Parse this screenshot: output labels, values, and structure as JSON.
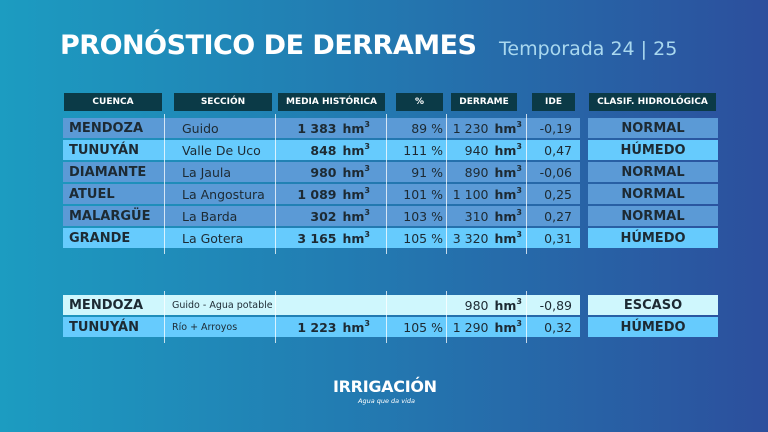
{
  "header": {
    "title": "PRONÓSTICO DE DERRAMES",
    "subtitle": "Temporada 24 | 25"
  },
  "columns": {
    "cuenca": "CUENCA",
    "seccion": "SECCIÓN",
    "media": "MEDIA HISTÓRICA",
    "pct": "%",
    "derrame": "DERRAME",
    "ide": "IDE",
    "clasif": "CLASIF. HIDROLÓGICA"
  },
  "colors": {
    "normal": "#5b9ad6",
    "humedo": "#66cbfd",
    "escaso": "#cff7fd",
    "header": "#0b3a47"
  },
  "main_rows": [
    {
      "cuenca": "MENDOZA",
      "seccion": "Guido",
      "media": "1 383",
      "pct": "89 %",
      "derrame": "1 230",
      "ide": "-0,19",
      "clasif": "NORMAL",
      "type": "normal"
    },
    {
      "cuenca": "TUNUYÁN",
      "seccion": "Valle De Uco",
      "media": "848",
      "pct": "111 %",
      "derrame": "940",
      "ide": "0,47",
      "clasif": "HÚMEDO",
      "type": "humedo"
    },
    {
      "cuenca": "DIAMANTE",
      "seccion": "La Jaula",
      "media": "980",
      "pct": "91 %",
      "derrame": "890",
      "ide": "-0,06",
      "clasif": "NORMAL",
      "type": "normal"
    },
    {
      "cuenca": "ATUEL",
      "seccion": "La Angostura",
      "media": "1 089",
      "pct": "101 %",
      "derrame": "1 100",
      "ide": "0,25",
      "clasif": "NORMAL",
      "type": "normal"
    },
    {
      "cuenca": "MALARGÜE",
      "seccion": "La Barda",
      "media": "302",
      "pct": "103 %",
      "derrame": "310",
      "ide": "0,27",
      "clasif": "NORMAL",
      "type": "normal"
    },
    {
      "cuenca": "GRANDE",
      "seccion": "La Gotera",
      "media": "3 165",
      "pct": "105 %",
      "derrame": "3 320",
      "ide": "0,31",
      "clasif": "HÚMEDO",
      "type": "humedo"
    }
  ],
  "extra_rows": [
    {
      "cuenca": "MENDOZA",
      "seccion": "Guido - Agua potable",
      "media": "",
      "pct": "",
      "derrame": "980",
      "ide": "-0,89",
      "clasif": "ESCASO",
      "type": "escaso"
    },
    {
      "cuenca": "TUNUYÁN",
      "seccion": "Río + Arroyos",
      "media": "1 223",
      "pct": "105 %",
      "derrame": "1 290",
      "ide": "0,32",
      "clasif": "HÚMEDO",
      "type": "humedo"
    }
  ],
  "unit": "hm³",
  "logo": {
    "name": "IRRIGACIÓN",
    "tagline": "Agua que da vida"
  }
}
